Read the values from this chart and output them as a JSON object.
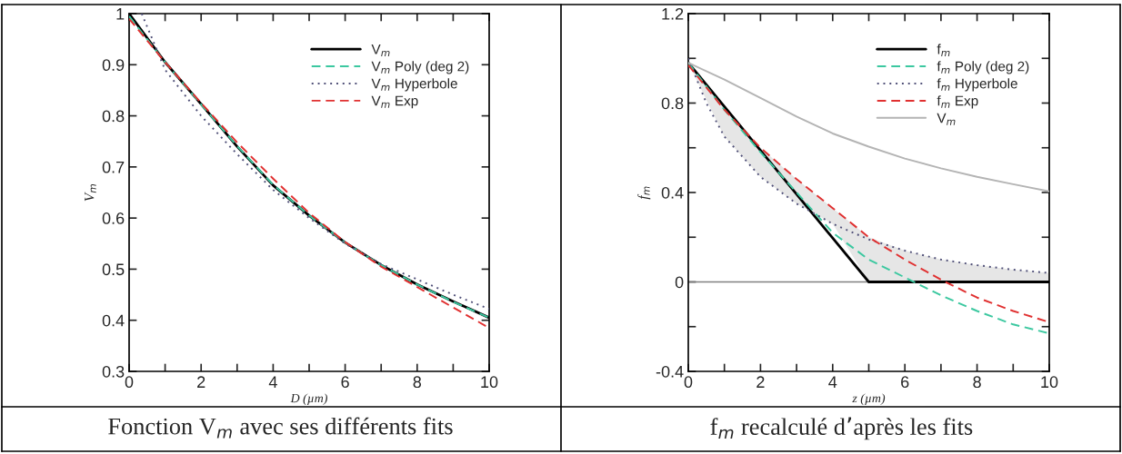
{
  "chart_data": [
    {
      "type": "line",
      "xlabel": "D (µm)",
      "ylabel": "V$_{m}$",
      "xlim": [
        0,
        10
      ],
      "ylim": [
        0.3,
        1
      ],
      "xticks": [
        0,
        {
          "value": 1,
          "label": null
        },
        2,
        {
          "value": 3,
          "label": null
        },
        4,
        {
          "value": 5,
          "label": null
        },
        6,
        {
          "value": 7,
          "label": null
        },
        8,
        {
          "value": 9,
          "label": null
        },
        10
      ],
      "yticks": [
        0.3,
        0.4,
        0.5,
        0.6,
        0.7,
        0.8,
        0.9,
        1
      ],
      "legend": "top right",
      "grid": false,
      "series": [
        {
          "name": "V$_{m}$",
          "color": "#000000",
          "line_style": "solid",
          "x": [
            0,
            1,
            2,
            3,
            4,
            5,
            6,
            7,
            8,
            9,
            10
          ],
          "values": [
            1.0,
            0.905,
            0.823,
            0.74,
            0.664,
            0.605,
            0.552,
            0.508,
            0.47,
            0.437,
            0.405
          ]
        },
        {
          "name": "V$_{m}$ Poly (deg 2)",
          "color": "#3cc8a0",
          "line_style": "dashed",
          "x": [
            0,
            1,
            2,
            3,
            4,
            5,
            6,
            7,
            8,
            9,
            10
          ],
          "values": [
            0.995,
            0.905,
            0.822,
            0.741,
            0.665,
            0.605,
            0.552,
            0.508,
            0.47,
            0.436,
            0.405
          ]
        },
        {
          "name": "V$_{m}$ Hyperbole",
          "color": "#505078",
          "line_style": "dotted",
          "x": [
            0.35,
            1,
            2,
            3,
            4,
            5,
            6,
            7,
            8,
            9,
            10
          ],
          "values": [
            1.0,
            0.89,
            0.8,
            0.725,
            0.655,
            0.6,
            0.55,
            0.51,
            0.48,
            0.45,
            0.422
          ]
        },
        {
          "name": "V$_{m}$ Exp",
          "color": "#e03030",
          "line_style": "dashed",
          "x": [
            0,
            1,
            2,
            3,
            4,
            5,
            6,
            7,
            8,
            9,
            10
          ],
          "values": [
            0.99,
            0.905,
            0.825,
            0.748,
            0.677,
            0.61,
            0.553,
            0.505,
            0.465,
            0.425,
            0.385
          ]
        }
      ],
      "annotations": [
        "Fonction V$_{m}$ avec ses différents fits"
      ]
    },
    {
      "type": "line",
      "xlabel": "z (µm)",
      "ylabel": "f$_{m}$",
      "xlim": [
        0,
        10
      ],
      "ylim": [
        -0.4,
        1.2
      ],
      "xticks": [
        0,
        {
          "value": 1,
          "label": null
        },
        2,
        {
          "value": 3,
          "label": null
        },
        4,
        {
          "value": 5,
          "label": null
        },
        6,
        {
          "value": 7,
          "label": null
        },
        8,
        {
          "value": 9,
          "label": null
        },
        10
      ],
      "yticks": [
        -0.4,
        {
          "value": -0.2,
          "label": null
        },
        0,
        {
          "value": 0.2,
          "label": null
        },
        0.4,
        {
          "value": 0.6,
          "label": null
        },
        0.8,
        {
          "value": 1,
          "label": null
        },
        1.2
      ],
      "legend": "top right",
      "grid": false,
      "ref_lines": [
        {
          "axis": "y",
          "value": 0,
          "color": "#808080",
          "line_style": "solid"
        }
      ],
      "series": [
        {
          "name": "f$_{m}$",
          "color": "#000000",
          "line_style": "solid",
          "x": [
            0,
            1,
            2,
            3,
            4,
            5,
            6,
            7,
            8,
            9,
            10
          ],
          "values": [
            0.98,
            0.784,
            0.588,
            0.392,
            0.196,
            0,
            0,
            0,
            0,
            0,
            0
          ],
          "lower": [
            0.98,
            0.65,
            0.47,
            0.35,
            0.26,
            0,
            0,
            0,
            0,
            0,
            0
          ],
          "upper": [
            0.98,
            0.784,
            0.6,
            0.46,
            0.33,
            0.2,
            0.14,
            0.1,
            0.075,
            0.055,
            0.04
          ]
        },
        {
          "name": "f$_{m}$ Poly (deg 2)",
          "color": "#3cc8a0",
          "line_style": "dashed",
          "x": [
            0,
            1,
            2,
            3,
            4,
            5,
            6,
            7,
            8,
            9,
            10
          ],
          "values": [
            0.98,
            0.77,
            0.58,
            0.4,
            0.22,
            0.1,
            0.02,
            -0.06,
            -0.13,
            -0.19,
            -0.23
          ]
        },
        {
          "name": "f$_{m}$ Hyperbole",
          "color": "#505078",
          "line_style": "dotted",
          "x": [
            0,
            0.5,
            1,
            2,
            3,
            4,
            5,
            6,
            7,
            8,
            9,
            10
          ],
          "values": [
            1.0,
            0.8,
            0.65,
            0.47,
            0.35,
            0.26,
            0.19,
            0.14,
            0.1,
            0.075,
            0.055,
            0.04
          ]
        },
        {
          "name": "f$_{m}$ Exp",
          "color": "#e03030",
          "line_style": "dashed",
          "x": [
            0,
            1,
            2,
            3,
            4,
            5,
            6,
            7,
            8,
            9,
            10
          ],
          "values": [
            0.97,
            0.77,
            0.6,
            0.46,
            0.33,
            0.2,
            0.1,
            0.01,
            -0.07,
            -0.13,
            -0.18
          ]
        },
        {
          "name": "V$_{m}$",
          "color": "#b4b4b4",
          "line_style": "solid",
          "x": [
            0,
            1,
            2,
            3,
            4,
            5,
            6,
            7,
            8,
            9,
            10
          ],
          "values": [
            0.98,
            0.905,
            0.823,
            0.74,
            0.664,
            0.605,
            0.552,
            0.508,
            0.47,
            0.437,
            0.405
          ]
        }
      ],
      "annotations": [
        "f$_{m}$ recalculé d’après les fits"
      ]
    }
  ]
}
